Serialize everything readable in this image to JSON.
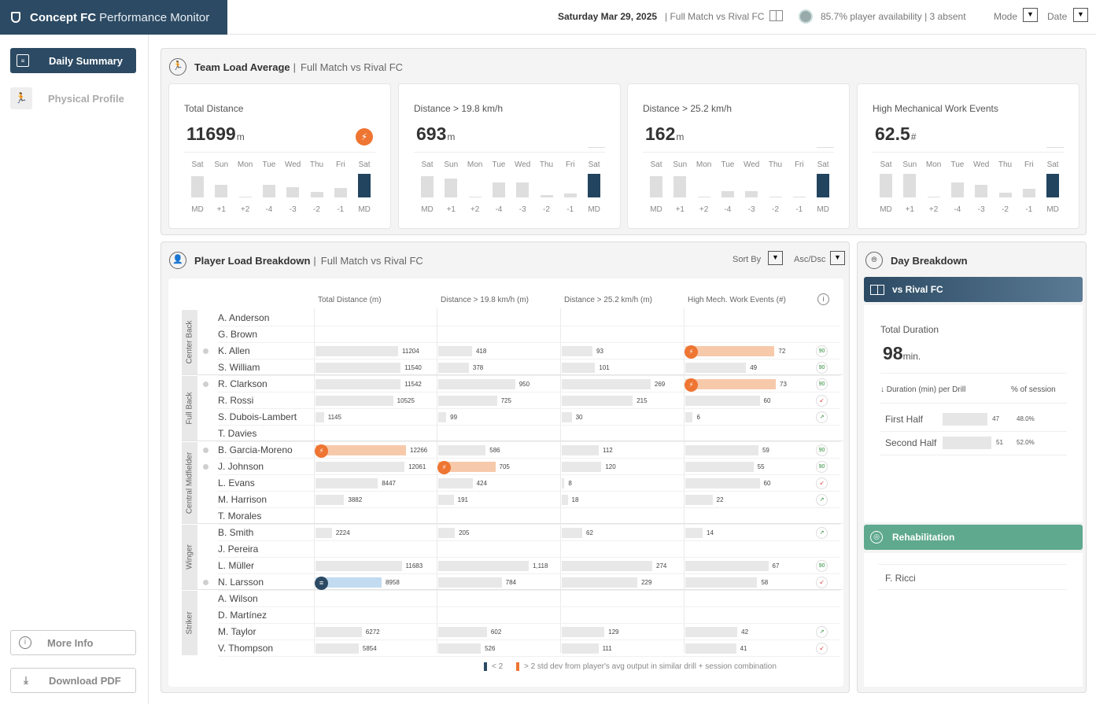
{
  "app": {
    "brand": "Concept FC",
    "subtitle": "Performance Monitor"
  },
  "topbar": {
    "date": "Saturday Mar 29, 2025",
    "match": "| Full Match vs Rival FC",
    "availability": "85.7% player availability | 3 absent",
    "mode_label": "Mode",
    "date_label": "Date"
  },
  "sidebar": {
    "daily_summary": "Daily Summary",
    "physical_profile": "Physical Profile",
    "more_info": "More Info",
    "download_pdf": "Download PDF"
  },
  "team": {
    "title": "Team Load Average",
    "separator": "|",
    "subtitle": "Full Match vs Rival FC",
    "days": [
      "Sat",
      "Sun",
      "Mon",
      "Tue",
      "Wed",
      "Thu",
      "Fri",
      "Sat"
    ],
    "offsets": [
      "MD",
      "+1",
      "+2",
      "-4",
      "-3",
      "-2",
      "-1",
      "MD"
    ],
    "kpis": [
      {
        "label": "Total Distance",
        "value": "11699",
        "unit": "m",
        "alert": true,
        "bars": [
          0.9,
          0.55,
          0,
          0.52,
          0.45,
          0.25,
          0.4,
          1.0
        ]
      },
      {
        "label": "Distance > 19.8 km/h",
        "value": "693",
        "unit": "m",
        "alert": false,
        "bars": [
          0.9,
          0.8,
          0.02,
          0.65,
          0.65,
          0.1,
          0.18,
          1.0
        ]
      },
      {
        "label": "Distance > 25.2 km/h",
        "value": "162",
        "unit": "m",
        "alert": false,
        "bars": [
          0.9,
          0.9,
          0.02,
          0.28,
          0.28,
          0.05,
          0.05,
          1.0
        ]
      },
      {
        "label": "High Mechanical Work Events",
        "value": "62.5",
        "unit": "#",
        "alert": false,
        "bars": [
          1.0,
          1.0,
          0.02,
          0.65,
          0.55,
          0.2,
          0.38,
          1.0
        ]
      }
    ]
  },
  "player": {
    "title": "Player Load Breakdown",
    "separator": "|",
    "subtitle": "Full Match vs Rival FC",
    "sort_by": "Sort By",
    "asc_dsc": "Asc/Dsc",
    "columns": [
      "Total Distance (m)",
      "Distance > 19.8 km/h (m)",
      "Distance > 25.2 km/h (m)",
      "High Mech. Work Events (#)"
    ],
    "max": [
      12266,
      1118,
      274,
      73
    ],
    "groups": [
      "Center Back",
      "Full Back",
      "Central Midfielder",
      "Winger",
      "Striker"
    ],
    "rows": [
      {
        "name": "A. Anderson",
        "dot": false,
        "vals": null,
        "status": null
      },
      {
        "name": "G. Brown",
        "dot": false,
        "vals": null,
        "status": null
      },
      {
        "name": "K. Allen",
        "dot": true,
        "vals": [
          "11204",
          "418",
          "93",
          "72"
        ],
        "flags": [
          null,
          null,
          null,
          "hi"
        ],
        "status": "90"
      },
      {
        "name": "S. William",
        "dot": false,
        "vals": [
          "11540",
          "378",
          "101",
          "49"
        ],
        "flags": [
          null,
          null,
          null,
          null
        ],
        "status": "90"
      },
      {
        "name": "R. Clarkson",
        "dot": true,
        "vals": [
          "11542",
          "950",
          "269",
          "73"
        ],
        "flags": [
          null,
          null,
          null,
          "hi"
        ],
        "status": "90"
      },
      {
        "name": "R. Rossi",
        "dot": false,
        "vals": [
          "10525",
          "725",
          "215",
          "60"
        ],
        "flags": [
          null,
          null,
          null,
          null
        ],
        "status": "down"
      },
      {
        "name": "S. Dubois-Lambert",
        "dot": false,
        "vals": [
          "1145",
          "99",
          "30",
          "6"
        ],
        "flags": [
          null,
          null,
          null,
          null
        ],
        "status": "up"
      },
      {
        "name": "T. Davies",
        "dot": false,
        "vals": null,
        "status": null
      },
      {
        "name": "B. Garcia-Moreno",
        "dot": true,
        "vals": [
          "12266",
          "586",
          "112",
          "59"
        ],
        "flags": [
          "hi",
          null,
          null,
          null
        ],
        "status": "90"
      },
      {
        "name": "J. Johnson",
        "dot": true,
        "vals": [
          "12061",
          "705",
          "120",
          "55"
        ],
        "flags": [
          null,
          "hi",
          null,
          null
        ],
        "status": "90"
      },
      {
        "name": "L. Evans",
        "dot": false,
        "vals": [
          "8447",
          "424",
          "8",
          "60"
        ],
        "flags": [
          null,
          null,
          null,
          null
        ],
        "status": "down"
      },
      {
        "name": "M. Harrison",
        "dot": false,
        "vals": [
          "3882",
          "191",
          "18",
          "22"
        ],
        "flags": [
          null,
          null,
          null,
          null
        ],
        "status": "up"
      },
      {
        "name": "T. Morales",
        "dot": false,
        "vals": null,
        "status": null
      },
      {
        "name": "B. Smith",
        "dot": false,
        "vals": [
          "2224",
          "205",
          "62",
          "14"
        ],
        "flags": [
          null,
          null,
          null,
          null
        ],
        "status": "up"
      },
      {
        "name": "J. Pereira",
        "dot": false,
        "vals": null,
        "status": null
      },
      {
        "name": "L. Müller",
        "dot": false,
        "vals": [
          "11683",
          "1,118",
          "274",
          "67"
        ],
        "flags": [
          null,
          null,
          null,
          null
        ],
        "status": "90"
      },
      {
        "name": "N. Larsson",
        "dot": true,
        "vals": [
          "8958",
          "784",
          "229",
          "58"
        ],
        "flags": [
          "lo",
          null,
          null,
          null
        ],
        "status": "down"
      },
      {
        "name": "A. Wilson",
        "dot": false,
        "vals": null,
        "status": null
      },
      {
        "name": "D. Martínez",
        "dot": false,
        "vals": null,
        "status": null
      },
      {
        "name": "M. Taylor",
        "dot": false,
        "vals": [
          "6272",
          "602",
          "129",
          "42"
        ],
        "flags": [
          null,
          null,
          null,
          null
        ],
        "status": "up"
      },
      {
        "name": "V. Thompson",
        "dot": false,
        "vals": [
          "5854",
          "526",
          "111",
          "41"
        ],
        "flags": [
          null,
          null,
          null,
          null
        ],
        "status": "down"
      }
    ],
    "legend_low": "< 2",
    "legend_high": "> 2 std dev from player's avg output in similar drill + session combination",
    "status_90": "90",
    "status_up": "↗",
    "status_down": "↙"
  },
  "day": {
    "title": "Day Breakdown",
    "match": "vs Rival FC",
    "total_duration_label": "Total Duration",
    "total_duration": "98",
    "unit": "min.",
    "col_drill": "↓  Duration (min) per Drill",
    "col_pct": "% of session",
    "drills": [
      {
        "name": "First Half",
        "min": "47",
        "pct": "48.0%"
      },
      {
        "name": "Second Half",
        "min": "51",
        "pct": "52.0%"
      }
    ],
    "rehab_title": "Rehabilitation",
    "rehab_players": [
      "F. Ricci"
    ]
  },
  "colors": {
    "navy": "#2c4a63",
    "orange": "#ee7532",
    "orange_light": "#f7c9ab",
    "blue_light": "#c2dbf0",
    "teal": "#5fa98f"
  }
}
